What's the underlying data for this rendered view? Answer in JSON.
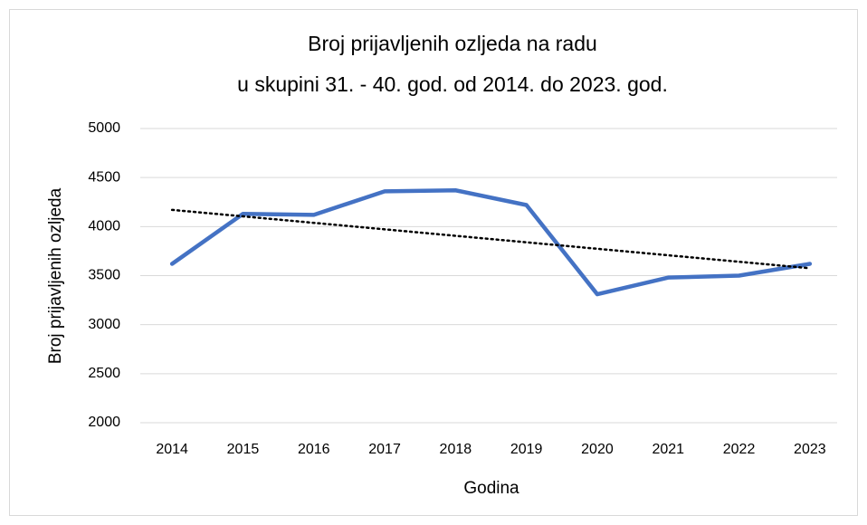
{
  "chart_data": {
    "type": "line",
    "title": [
      "Broj prijavljenih ozljeda na radu",
      "u skupini 31. - 40. god. od 2014. do 2023. god."
    ],
    "x_label": "Godina",
    "y_label": "Broj prijavljenih ozljeda",
    "categories": [
      "2014",
      "2015",
      "2016",
      "2017",
      "2018",
      "2019",
      "2020",
      "2021",
      "2022",
      "2023"
    ],
    "series": [
      {
        "name": "Broj prijavljenih ozljeda",
        "color": "#4472c4",
        "values": [
          3620,
          4130,
          4120,
          4360,
          4370,
          4220,
          3310,
          3480,
          3500,
          3620
        ]
      }
    ],
    "ylim": [
      2000,
      5000
    ],
    "yticks": [
      2000,
      2500,
      3000,
      3500,
      4000,
      4500,
      5000
    ],
    "grid": true,
    "trendline": "linear",
    "trendline_color": "#000000"
  }
}
